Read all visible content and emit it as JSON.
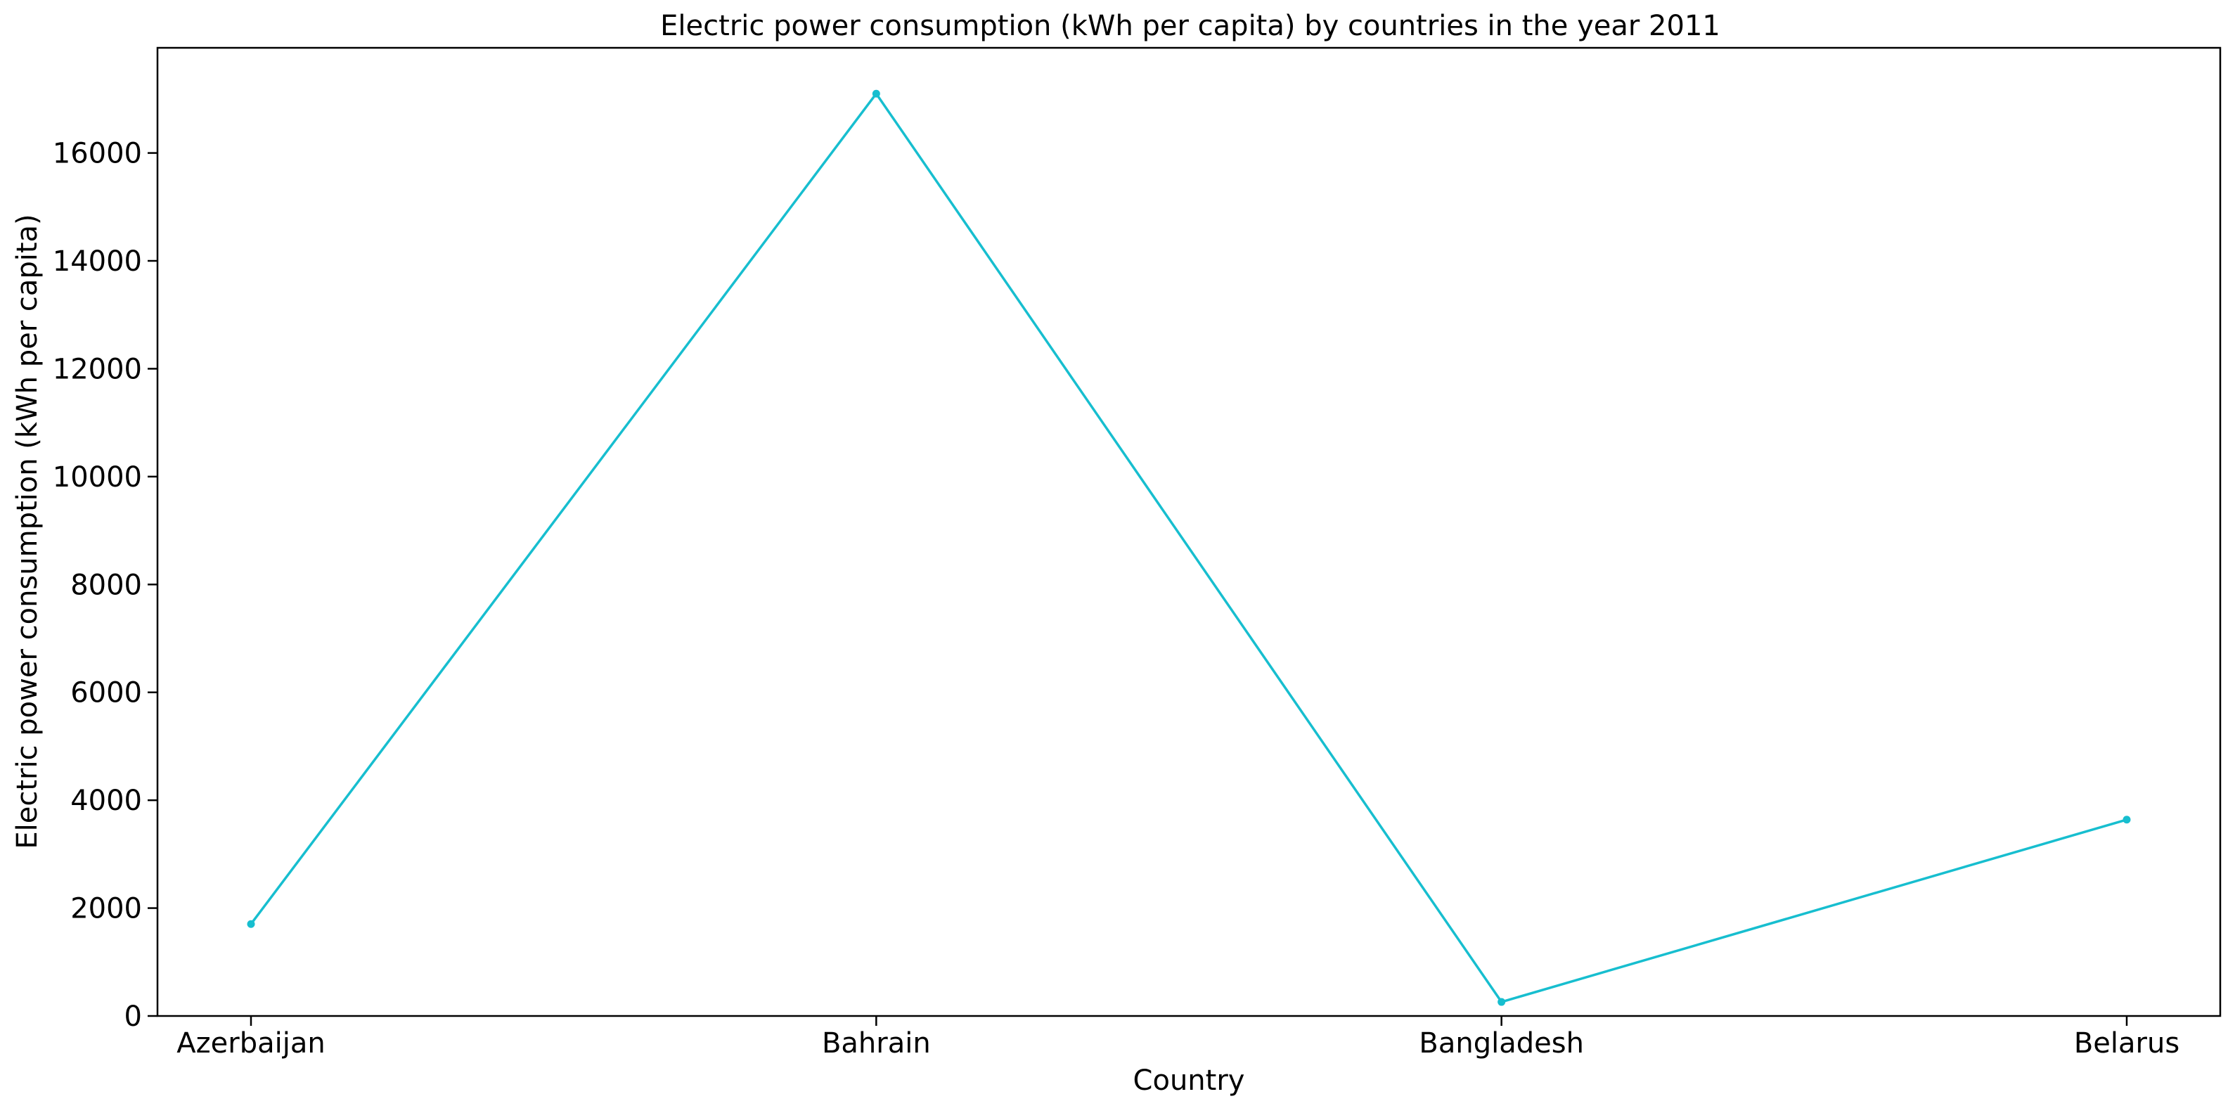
{
  "chart_data": {
    "type": "line",
    "title": "Electric power consumption (kWh per capita) by countries in the year 2011",
    "xlabel": "Country",
    "ylabel": "Electric power consumption (kWh per capita)",
    "categories": [
      "Azerbaijan",
      "Bahrain",
      "Bangladesh",
      "Belarus"
    ],
    "series": [
      {
        "values": [
          1705,
          17100,
          260,
          3640
        ]
      }
    ],
    "ylim": [
      0,
      17950
    ],
    "yticks": [
      0,
      2000,
      4000,
      6000,
      8000,
      10000,
      12000,
      14000,
      16000
    ],
    "grid": false,
    "legend": "none",
    "line_color": "#17becf",
    "marker": "circle"
  }
}
